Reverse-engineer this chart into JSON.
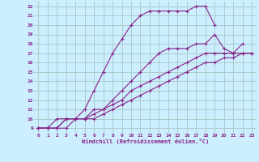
{
  "xlabel": "Windchill (Refroidissement éolien,°C)",
  "bg_color": "#cceeff",
  "grid_color": "#aacccc",
  "line_color": "#882288",
  "xlim": [
    -0.5,
    23.5
  ],
  "ylim": [
    8.5,
    22.5
  ],
  "xticks": [
    0,
    1,
    2,
    3,
    4,
    5,
    6,
    7,
    8,
    9,
    10,
    11,
    12,
    13,
    14,
    15,
    16,
    17,
    18,
    19,
    20,
    21,
    22,
    23
  ],
  "yticks": [
    9,
    10,
    11,
    12,
    13,
    14,
    15,
    16,
    17,
    18,
    19,
    20,
    21,
    22
  ],
  "lines": [
    {
      "x": [
        0,
        1,
        2,
        3,
        4,
        5,
        6,
        7,
        8,
        9,
        10,
        11,
        12,
        13,
        14,
        15,
        16,
        17,
        18,
        19
      ],
      "y": [
        9,
        9,
        10,
        10,
        10,
        11,
        13,
        15,
        17,
        18.5,
        20,
        21,
        21.5,
        21.5,
        21.5,
        21.5,
        21.5,
        22,
        22,
        20
      ]
    },
    {
      "x": [
        0,
        1,
        2,
        3,
        4,
        5,
        6,
        7,
        8,
        9,
        10,
        11,
        12,
        13,
        14,
        15,
        16,
        17,
        18,
        19,
        20,
        21,
        22
      ],
      "y": [
        9,
        9,
        9,
        10,
        10,
        10,
        11,
        11,
        12,
        13,
        14,
        15,
        16,
        17,
        17.5,
        17.5,
        17.5,
        18,
        18,
        19,
        17.5,
        17,
        18
      ]
    },
    {
      "x": [
        0,
        1,
        2,
        3,
        4,
        5,
        6,
        7,
        8,
        9,
        10,
        11,
        12,
        13,
        14,
        15,
        16,
        17,
        18,
        19,
        20,
        21,
        22,
        23
      ],
      "y": [
        9,
        9,
        9,
        10,
        10,
        10,
        10.5,
        11,
        11.5,
        12,
        13,
        13.5,
        14,
        14.5,
        15,
        15.5,
        16,
        16.5,
        17,
        17,
        17,
        17,
        17,
        17
      ]
    },
    {
      "x": [
        0,
        1,
        2,
        3,
        4,
        5,
        6,
        7,
        8,
        9,
        10,
        11,
        12,
        13,
        14,
        15,
        16,
        17,
        18,
        19,
        20,
        21,
        22,
        23
      ],
      "y": [
        9,
        9,
        9,
        9,
        10,
        10,
        10,
        10.5,
        11,
        11.5,
        12,
        12.5,
        13,
        13.5,
        14,
        14.5,
        15,
        15.5,
        16,
        16,
        16.5,
        16.5,
        17,
        17
      ]
    }
  ]
}
